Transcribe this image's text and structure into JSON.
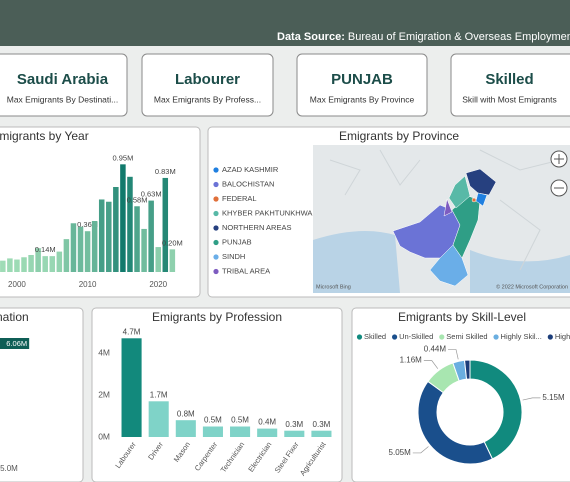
{
  "header": {
    "label": "Data Source:",
    "text": "Bureau of Emigration & Overseas Employment"
  },
  "cards": [
    {
      "value": "Saudi Arabia",
      "label": "Max Emigrants By Destinati..."
    },
    {
      "value": "Labourer",
      "label": "Max Emigrants By Profess..."
    },
    {
      "value": "PUNJAB",
      "label": "Max Emigrants By Province"
    },
    {
      "value": "Skilled",
      "label": "Skill with Most Emigrants"
    }
  ],
  "chart_data": [
    {
      "type": "bar",
      "title": "Emigrants by Year",
      "x": [
        1998,
        1999,
        2000,
        2001,
        2002,
        2003,
        2004,
        2005,
        2006,
        2007,
        2008,
        2009,
        2010,
        2011,
        2012,
        2013,
        2014,
        2015,
        2016,
        2017,
        2018,
        2019,
        2020,
        2021,
        2022
      ],
      "values": [
        0.1,
        0.12,
        0.11,
        0.13,
        0.15,
        0.21,
        0.14,
        0.14,
        0.18,
        0.29,
        0.43,
        0.4,
        0.36,
        0.45,
        0.64,
        0.62,
        0.75,
        0.95,
        0.84,
        0.58,
        0.38,
        0.63,
        0.22,
        0.83,
        0.2
      ],
      "value_labels": [
        null,
        null,
        null,
        null,
        null,
        null,
        "0.14M",
        null,
        null,
        null,
        null,
        null,
        "0.36M",
        null,
        null,
        null,
        null,
        "0.95M",
        null,
        "0.58M",
        null,
        "0.63M",
        null,
        "0.83M",
        "0.20M"
      ],
      "xlim": [
        1997.6,
        2022.8
      ],
      "xticks": [
        2000,
        2010,
        2020
      ],
      "ylim": [
        0,
        1.05
      ],
      "color_scale": [
        "#9fdcb6",
        "#117a6c"
      ]
    },
    {
      "type": "map",
      "title": "Emigrants by Province",
      "legend": [
        {
          "name": "AZAD KASHMIR",
          "color": "#1f7fe0"
        },
        {
          "name": "BALOCHISTAN",
          "color": "#6b73d6"
        },
        {
          "name": "FEDERAL",
          "color": "#e0703a"
        },
        {
          "name": "KHYBER PAKHTUNKHWA",
          "color": "#58b9a7"
        },
        {
          "name": "NORTHERN AREAS",
          "color": "#26407f"
        },
        {
          "name": "PUNJAB",
          "color": "#2f9e86"
        },
        {
          "name": "SINDH",
          "color": "#6aaee8"
        },
        {
          "name": "TRIBAL AREA",
          "color": "#7e5cc0"
        }
      ],
      "attribution": "Microsoft Bing",
      "copyright": "© 2022 Microsoft Corporation"
    },
    {
      "type": "hbar",
      "title": "Emigrants by Destination",
      "categories": [
        null
      ],
      "values": [
        6.06
      ],
      "value_labels": [
        "6.06M"
      ],
      "xlim": [
        0,
        6.5
      ],
      "xticks": [
        {
          "value": 5,
          "label": "5.0M"
        }
      ],
      "color": "#0f5e56"
    },
    {
      "type": "bar",
      "title": "Emigrants by Profession",
      "categories": [
        "Labourer",
        "Driver",
        "Mason",
        "Carpenter",
        "Technician",
        "Electrician",
        "Steel Fixer",
        "Agriculturist"
      ],
      "values": [
        4.7,
        1.7,
        0.8,
        0.5,
        0.5,
        0.4,
        0.3,
        0.3
      ],
      "value_labels": [
        "4.7M",
        "1.7M",
        "0.8M",
        "0.5M",
        "0.5M",
        "0.4M",
        "0.3M",
        "0.3M"
      ],
      "colors": [
        "#12897c",
        "#7fd3c8",
        "#7fd3c8",
        "#7fd3c8",
        "#7fd3c8",
        "#7fd3c8",
        "#7fd3c8",
        "#7fd3c8"
      ],
      "ylim": [
        0,
        5
      ],
      "yticks": [
        {
          "value": 0,
          "label": "0M"
        },
        {
          "value": 2,
          "label": "2M"
        },
        {
          "value": 4,
          "label": "4M"
        }
      ]
    },
    {
      "type": "donut",
      "title": "Emigrants by Skill-Level",
      "categories": [
        "Skilled",
        "Un-Skilled",
        "Semi Skilled",
        "Highly Skil...",
        "Highly Qualified"
      ],
      "values": [
        5.15,
        5.05,
        1.16,
        0.44,
        0.2
      ],
      "value_labels": [
        "5.15M",
        "5.05M",
        "1.16M",
        "0.44M",
        null
      ],
      "colors": [
        "#118a7e",
        "#1a4f8c",
        "#a8e6b0",
        "#6aaee0",
        "#1c3d7a"
      ]
    }
  ]
}
